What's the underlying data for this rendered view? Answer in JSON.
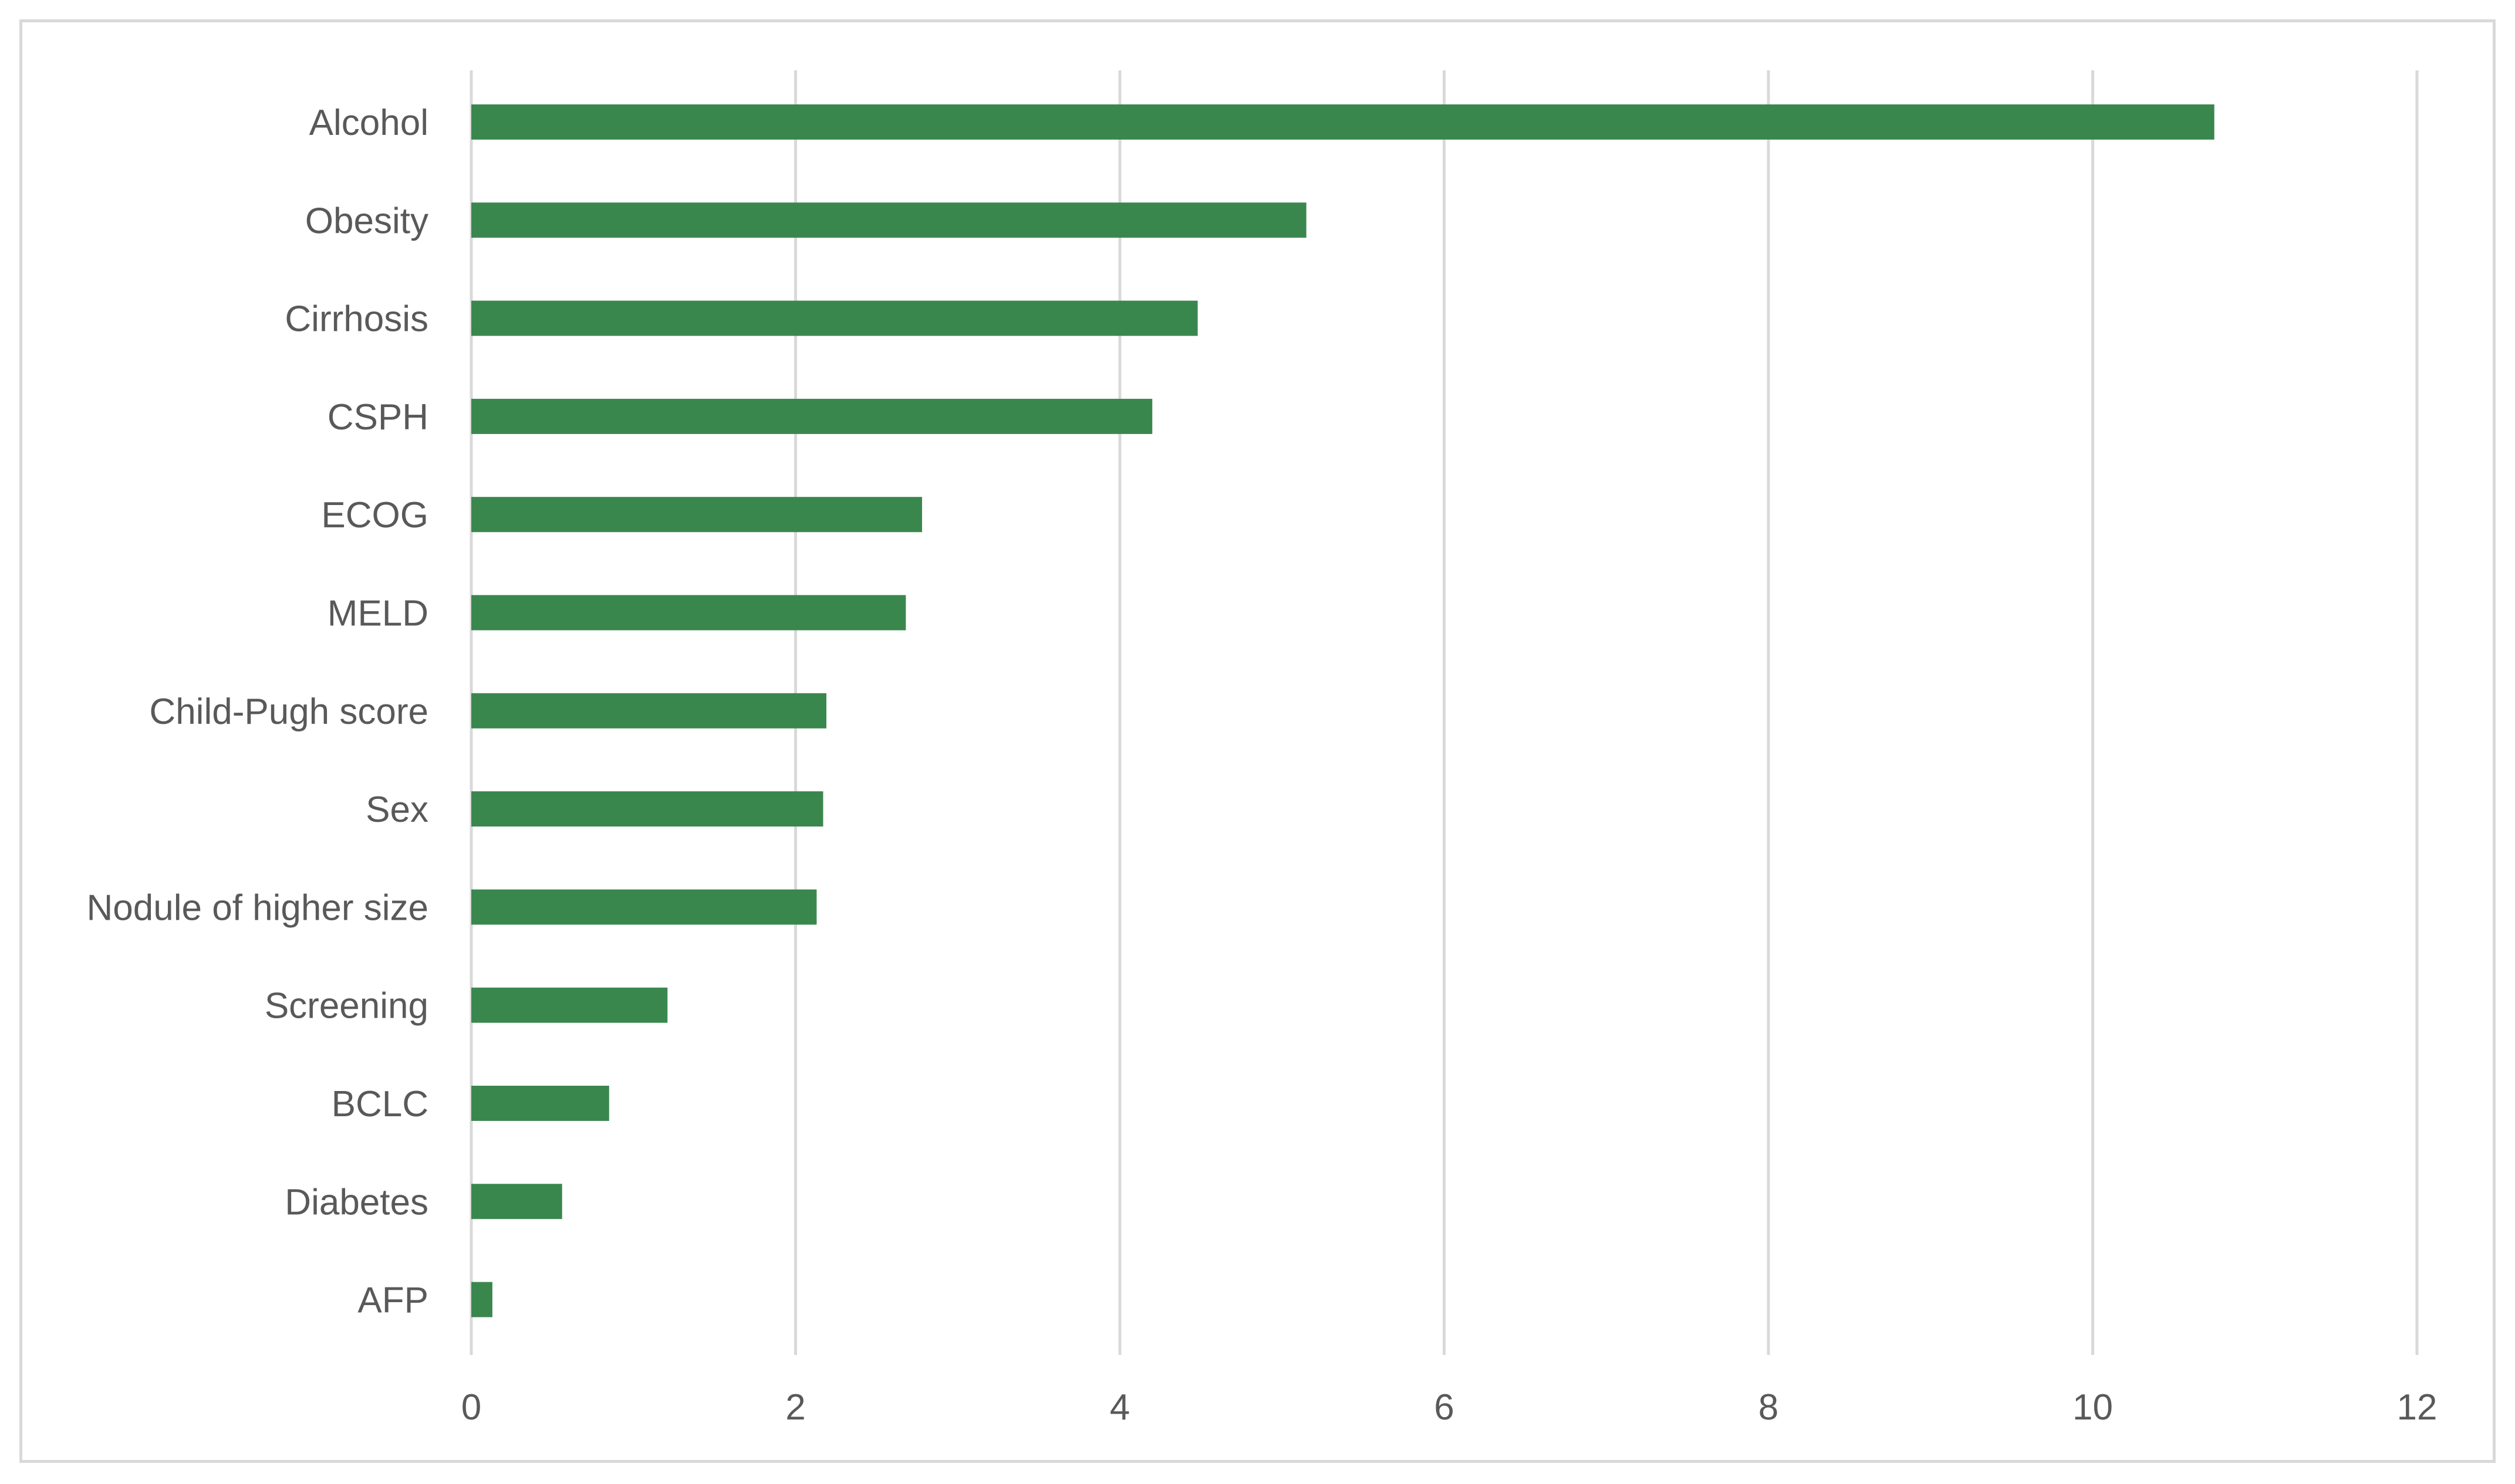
{
  "chart_data": {
    "type": "bar",
    "orientation": "horizontal",
    "title": "",
    "xlabel": "",
    "ylabel": "",
    "categories": [
      "Alcohol",
      "Obesity",
      "Cirrhosis",
      "CSPH",
      "ECOG",
      "MELD",
      "Child-Pugh score",
      "Sex",
      "Nodule of higher size",
      "Screening",
      "BCLC",
      "Diabetes",
      "AFP"
    ],
    "values": [
      10.75,
      5.15,
      4.48,
      4.2,
      2.78,
      2.68,
      2.19,
      2.17,
      2.13,
      1.21,
      0.85,
      0.56,
      0.13
    ],
    "xlim": [
      0,
      12
    ],
    "xticks": [
      "0",
      "2",
      "4",
      "6",
      "8",
      "10",
      "12"
    ],
    "grid": "vertical",
    "legend": "none",
    "colors": {
      "bar": "#3a874e",
      "grid": "#d9d9d9",
      "text": "#595959",
      "border": "#d9d9d9"
    }
  }
}
